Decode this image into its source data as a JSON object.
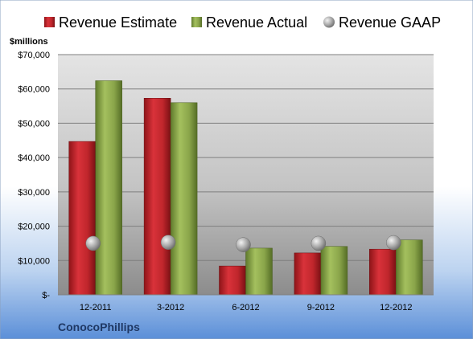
{
  "chart_data": {
    "type": "bar",
    "title": "",
    "ylabel": "$millions",
    "company": "ConocoPhillips",
    "categories": [
      "12-2011",
      "3-2012",
      "6-2012",
      "9-2012",
      "12-2012"
    ],
    "ylim": [
      0,
      70000
    ],
    "yticks": [
      {
        "value": 0,
        "label": "$-"
      },
      {
        "value": 10000,
        "label": "$10,000"
      },
      {
        "value": 20000,
        "label": "$20,000"
      },
      {
        "value": 30000,
        "label": "$30,000"
      },
      {
        "value": 40000,
        "label": "$40,000"
      },
      {
        "value": 50000,
        "label": "$50,000"
      },
      {
        "value": 60000,
        "label": "$60,000"
      },
      {
        "value": 70000,
        "label": "$70,000"
      }
    ],
    "grid": true,
    "legend_position": "top",
    "series": [
      {
        "name": "Revenue Estimate",
        "kind": "bar",
        "color": "#c0262c",
        "values": [
          44700,
          57300,
          8400,
          12200,
          13300
        ]
      },
      {
        "name": "Revenue Actual",
        "kind": "bar",
        "color": "#8aa54a",
        "values": [
          62400,
          56000,
          13600,
          14100,
          16000
        ]
      },
      {
        "name": "Revenue GAAP",
        "kind": "marker",
        "color": "#a6a6a6",
        "values": [
          15000,
          15300,
          14600,
          15000,
          15200
        ]
      }
    ]
  }
}
